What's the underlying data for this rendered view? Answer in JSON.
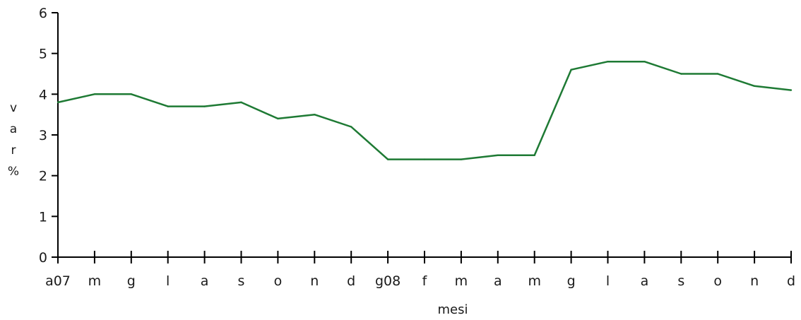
{
  "chart_data": {
    "type": "line",
    "categories": [
      "a07",
      "m",
      "g",
      "l",
      "a",
      "s",
      "o",
      "n",
      "d",
      "g08",
      "f",
      "m",
      "a",
      "m",
      "g",
      "l",
      "a",
      "s",
      "o",
      "n",
      "d"
    ],
    "series": [
      {
        "values": [
          3.8,
          4.0,
          4.0,
          3.7,
          3.7,
          3.8,
          3.4,
          3.5,
          3.2,
          2.4,
          2.4,
          2.4,
          2.5,
          2.5,
          4.6,
          4.8,
          4.8,
          4.5,
          4.5,
          4.2,
          4.1
        ],
        "color": "#1e7a34"
      }
    ],
    "title": "",
    "xlabel": "mesi",
    "ylabel": "var %",
    "ylim": [
      0,
      6
    ],
    "yticks": [
      0,
      1,
      2,
      3,
      4,
      5,
      6
    ],
    "grid": false,
    "legend": "none"
  }
}
